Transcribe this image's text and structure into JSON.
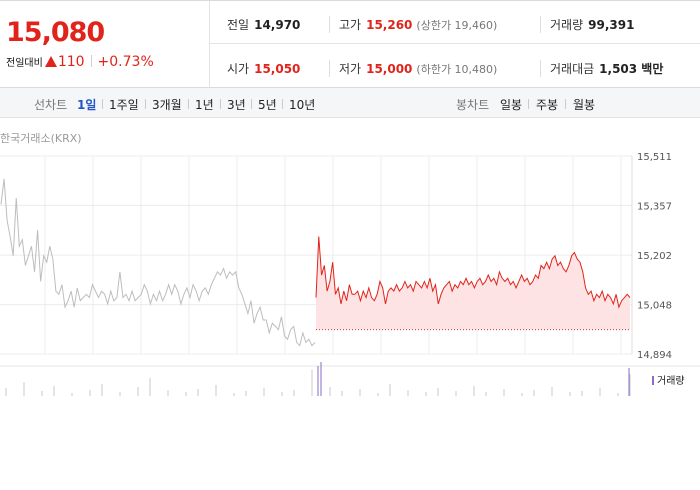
{
  "summary": {
    "price": "15,080",
    "change_label": "전일대비",
    "change_value": "110",
    "change_pct": "+0.73%",
    "prev_close_label": "전일",
    "prev_close": "14,970",
    "high_label": "고가",
    "high": "15,260",
    "upper_limit": "(상한가 19,460)",
    "volume_label": "거래량",
    "volume": "99,391",
    "open_label": "시가",
    "open": "15,050",
    "low_label": "저가",
    "low": "15,000",
    "lower_limit": "(하한가 10,480)",
    "amount_label": "거래대금",
    "amount": "1,503 백만"
  },
  "tabs": {
    "line_label": "선차트",
    "line_periods": [
      "1일",
      "1주일",
      "3개월",
      "1년",
      "3년",
      "5년",
      "10년"
    ],
    "active_index": 0,
    "candle_label": "봉차트",
    "candle_periods": [
      "일봉",
      "주봉",
      "월봉"
    ]
  },
  "chart": {
    "source": "한국거래소(KRX)",
    "volume_legend": "거래량",
    "colors": {
      "today": "#e0241b",
      "today_fill": "#fde3e3",
      "history": "#bdbdbd",
      "volume": "#8a6cc6",
      "grid": "#ececec"
    }
  },
  "chart_data": {
    "type": "line",
    "yticks": [
      15511,
      15357,
      15202,
      15048,
      14894
    ],
    "ylim": [
      14894,
      15511
    ],
    "prev_close": 14970,
    "series": [
      {
        "values": [
          15360,
          15440,
          15310,
          15260,
          15200,
          15380,
          15230,
          15250,
          15170,
          15200,
          15230,
          15150,
          15280,
          15120,
          15200,
          15180,
          15230,
          15190,
          15090,
          15080,
          15110,
          15040,
          15060,
          15090,
          15040,
          15100,
          15060,
          15070,
          15080,
          15070,
          15110,
          15090,
          15070,
          15090,
          15080,
          15050,
          15090,
          15060,
          15070,
          15150,
          15070,
          15080,
          15060,
          15090,
          15060,
          15070,
          15080,
          15110,
          15090,
          15050,
          15080,
          15060,
          15090,
          15060,
          15080,
          15110,
          15080,
          15110,
          15090,
          15050,
          15080,
          15100,
          15070,
          15110,
          15090,
          15060,
          15090,
          15100,
          15080,
          15110,
          15130,
          15150,
          15140,
          15160,
          15130,
          15150,
          15140,
          15150,
          15100,
          15080,
          15050,
          15020,
          15060,
          14990,
          15020,
          15040,
          15000,
          15000,
          14960,
          14990,
          14980,
          14970,
          15010,
          14950,
          14940,
          14970,
          14980,
          14930,
          14920,
          14960,
          14930,
          14940,
          14920,
          14930
        ]
      },
      {
        "values": [
          15070,
          15260,
          15140,
          15170,
          15090,
          15120,
          15180,
          15080,
          15100,
          15050,
          15090,
          15060,
          15110,
          15080,
          15080,
          15090,
          15060,
          15090,
          15070,
          15100,
          15070,
          15060,
          15080,
          15120,
          15100,
          15050,
          15090,
          15100,
          15090,
          15110,
          15090,
          15100,
          15120,
          15100,
          15110,
          15090,
          15120,
          15110,
          15100,
          15120,
          15100,
          15130,
          15090,
          15110,
          15050,
          15080,
          15100,
          15110,
          15120,
          15090,
          15110,
          15100,
          15120,
          15110,
          15130,
          15110,
          15120,
          15100,
          15120,
          15130,
          15110,
          15120,
          15140,
          15120,
          15130,
          15110,
          15150,
          15130,
          15120,
          15130,
          15110,
          15120,
          15100,
          15120,
          15140,
          15120,
          15130,
          15110,
          15120,
          15140,
          15130,
          15170,
          15160,
          15180,
          15160,
          15190,
          15200,
          15170,
          15180,
          15160,
          15150,
          15170,
          15200,
          15210,
          15190,
          15180,
          15150,
          15100,
          15080,
          15090,
          15060,
          15080,
          15070,
          15090,
          15060,
          15080,
          15070,
          15050,
          15080,
          15040,
          15060,
          15070,
          15080,
          15070
        ]
      }
    ]
  }
}
